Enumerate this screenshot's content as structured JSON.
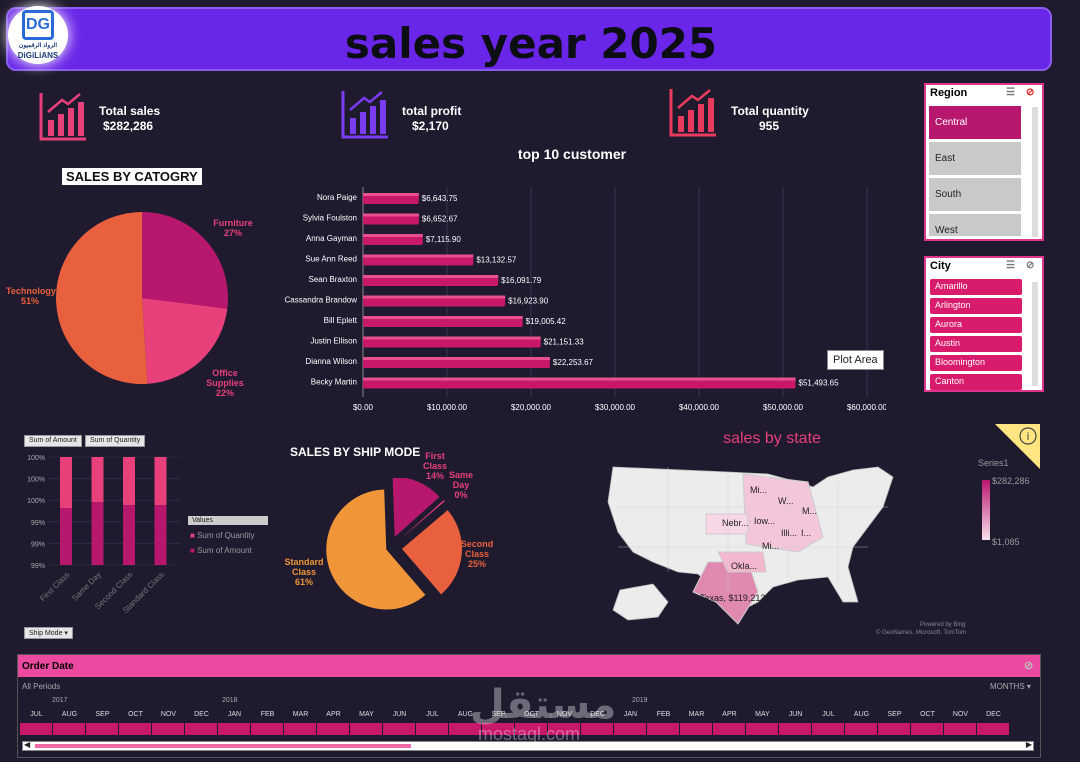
{
  "header": {
    "title": "sales year 2025",
    "logo_text_ar": "الرواد الرقميون",
    "logo_text_en": "DiGiLiANS",
    "logo_mark": "DG"
  },
  "kpis": [
    {
      "label": "Total sales",
      "value": "$282,286"
    },
    {
      "label": "total profit",
      "value": "$2,170"
    },
    {
      "label": "Total quantity",
      "value": "955"
    }
  ],
  "region_slicer": {
    "title": "Region",
    "items": [
      "Central",
      "East",
      "South",
      "West"
    ],
    "selected": "Central"
  },
  "city_slicer": {
    "title": "City",
    "items": [
      "Amarillo",
      "Arlington",
      "Aurora",
      "Austin",
      "Bloomington",
      "Canton"
    ]
  },
  "category_pie": {
    "title": "SALES BY CATOGRY",
    "labels": [
      {
        "name": "Furniture",
        "pct": "27%"
      },
      {
        "name": "Office Supplies",
        "pct": "22%"
      },
      {
        "name": "Technology",
        "pct": "51%"
      }
    ]
  },
  "customers": {
    "title": "top 10 customer",
    "tooltip": "Plot Area"
  },
  "pivot": {
    "fields": [
      "Sum of Amount",
      "Sum of Quantity"
    ],
    "yticks": [
      "100%",
      "100%",
      "100%",
      "99%",
      "99%",
      "99%"
    ],
    "legend_title": "Values",
    "legend_items": [
      "Sum of Quantity",
      "Sum of Amount"
    ],
    "categories": [
      "First Class",
      "Same Day",
      "Second Class",
      "Standard Class"
    ],
    "filter_btn": "Ship Mode"
  },
  "ship_mode": {
    "title": "SALES BY SHIP MODE",
    "labels": [
      {
        "name": "First Class",
        "pct": "14%"
      },
      {
        "name": "Same Day",
        "pct": "0%"
      },
      {
        "name": "Second Class",
        "pct": "25%"
      },
      {
        "name": "Standard Class",
        "pct": "61%"
      }
    ]
  },
  "map": {
    "title": "sales by state",
    "legend_series": "Series1",
    "legend_max": "$282,286",
    "legend_min": "$1,085",
    "states": [
      "Mi...",
      "W...",
      "M...",
      "Nebr...",
      "Iow...",
      "Illi...",
      "I...",
      "Mi...",
      "Okla...",
      "Texas, $119,213"
    ],
    "credit1": "Powered by Bing",
    "credit2": "© GeoNames, Microsoft, TomTom"
  },
  "timeline": {
    "title": "Order Date",
    "periods": "All Periods",
    "level": "MONTHS",
    "years": [
      "2017",
      "2018",
      "2019"
    ],
    "months": [
      "JUL",
      "AUG",
      "SEP",
      "OCT",
      "NOV",
      "DEC",
      "JAN",
      "FEB",
      "MAR",
      "APR",
      "MAY",
      "JUN",
      "JUL",
      "AUG",
      "SEP",
      "OCT",
      "NOV",
      "DEC",
      "JAN",
      "FEB",
      "MAR",
      "APR",
      "MAY",
      "JUN",
      "JUL",
      "AUG",
      "SEP",
      "OCT",
      "NOV",
      "DEC"
    ]
  },
  "watermark": {
    "ar": "مستقل",
    "en": "mostaql.com"
  },
  "chart_data": [
    {
      "type": "pie",
      "title": "SALES BY CATOGRY",
      "categories": [
        "Furniture",
        "Office Supplies",
        "Technology"
      ],
      "values": [
        27,
        22,
        51
      ],
      "colors": [
        "#b8176e",
        "#e8407a",
        "#e8603e"
      ]
    },
    {
      "type": "bar",
      "title": "top 10 customer",
      "categories": [
        "Nora Paige",
        "Sylvia Foulston",
        "Anna Gayman",
        "Sue Ann Reed",
        "Sean Braxton",
        "Cassandra Brandow",
        "Bill Eplett",
        "Justin Ellison",
        "Dianna Wilson",
        "Becky Martin"
      ],
      "values": [
        6643.75,
        6652.67,
        7115.9,
        13132.57,
        16091.79,
        16923.9,
        19005.42,
        21151.33,
        22253.67,
        51493.65
      ],
      "labels": [
        "$6,643.75",
        "$6,652.67",
        "$7,115.90",
        "$13,132.57",
        "$16,091.79",
        "$16,923.90",
        "$19,005.42",
        "$21,151.33",
        "$22,253.67",
        "$51,493.65"
      ],
      "xticks": [
        "$0.00",
        "$10,000.00",
        "$20,000.00",
        "$30,000.00",
        "$40,000.00",
        "$50,000.00",
        "$60,000.00"
      ],
      "xlim": [
        0,
        60000
      ],
      "orientation": "horizontal"
    },
    {
      "type": "bar",
      "categories": [
        "First Class",
        "Same Day",
        "Second Class",
        "Standard Class"
      ],
      "series": [
        {
          "name": "Sum of Quantity",
          "values": [
            99.2,
            99.4,
            99.3,
            99.3
          ]
        },
        {
          "name": "Sum of Amount",
          "values": [
            0.8,
            0.6,
            0.7,
            0.7
          ]
        }
      ],
      "stacked": true
    },
    {
      "type": "pie",
      "title": "SALES BY SHIP MODE",
      "categories": [
        "First Class",
        "Same Day",
        "Second Class",
        "Standard Class"
      ],
      "values": [
        14,
        0.4,
        25,
        61
      ],
      "colors": [
        "#b8176e",
        "#e8407a",
        "#e8603e",
        "#f0953a"
      ]
    }
  ]
}
